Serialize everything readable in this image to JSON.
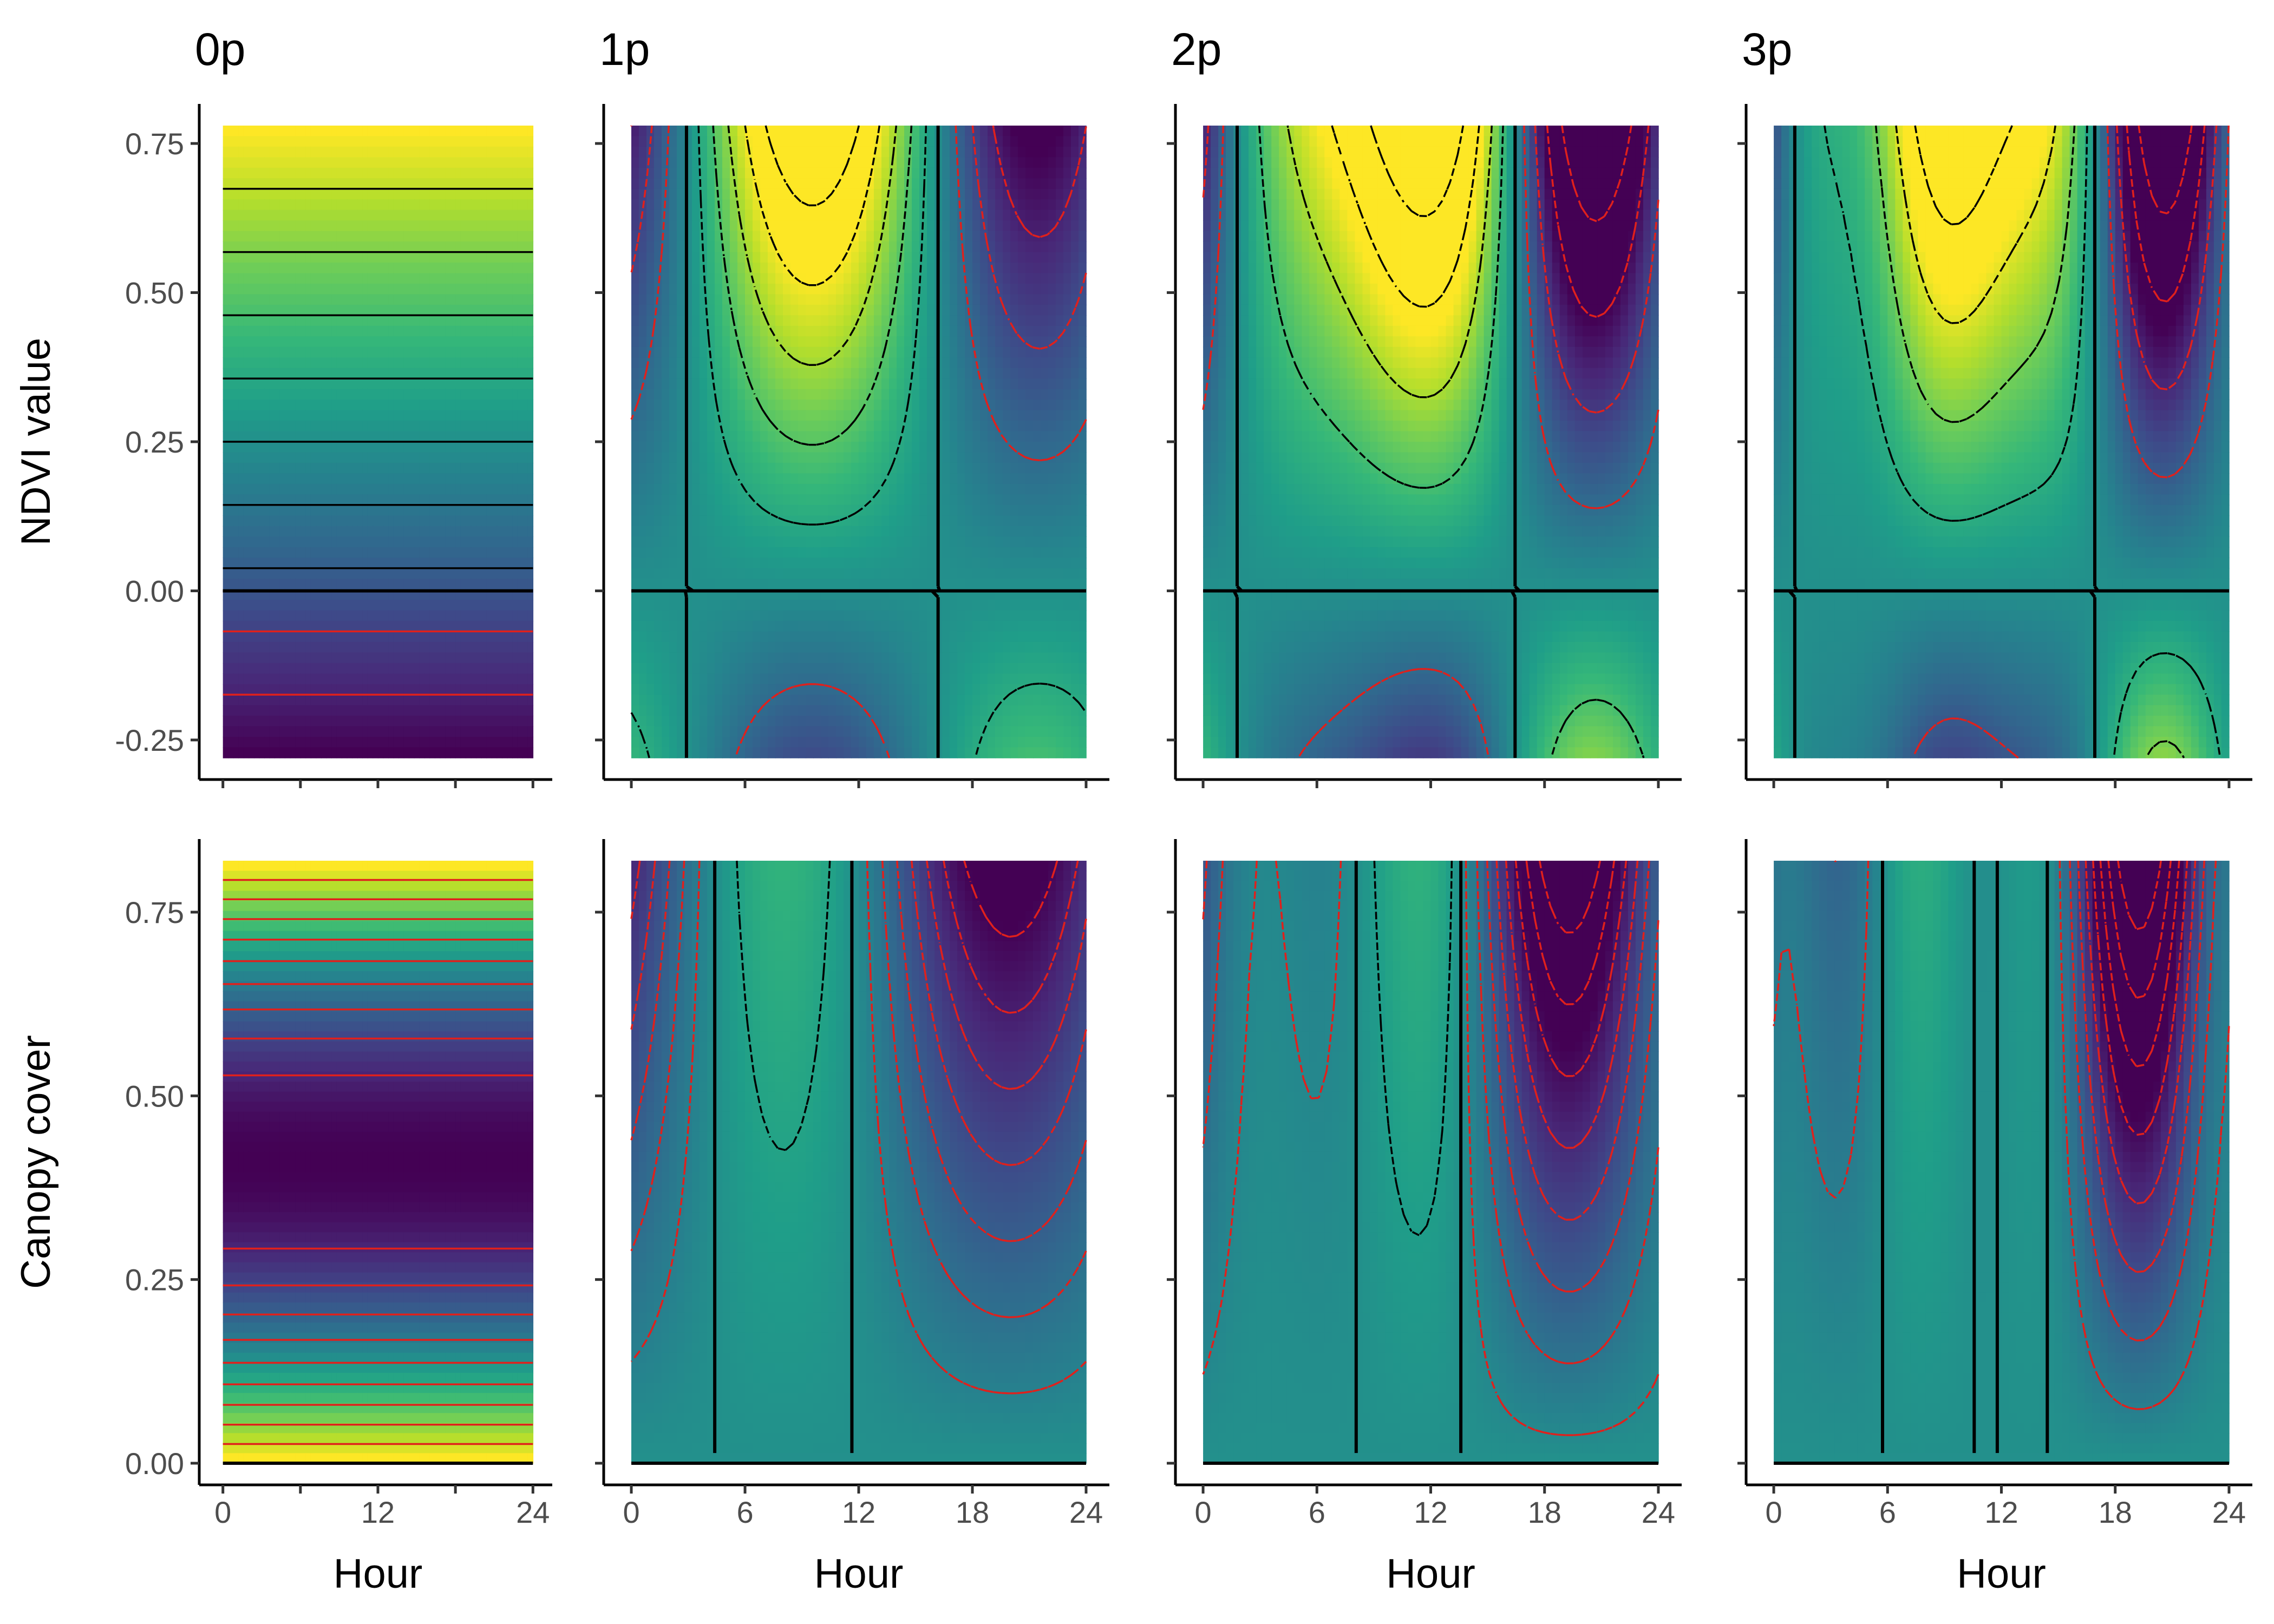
{
  "chart_data": {
    "type": "heatmap",
    "colormap": "viridis",
    "colors": {
      "viridis": [
        "#440154",
        "#482878",
        "#3e4a89",
        "#31688e",
        "#26828e",
        "#1f9e89",
        "#35b779",
        "#6dcd59",
        "#b4de2c",
        "#fde725"
      ],
      "zero_contour": "#000000",
      "negative_contour": "#e0201c",
      "positive_contour": "#000000",
      "axis": "#000000",
      "tick_label": "#4d4d4d"
    },
    "columns": [
      {
        "title": "0p",
        "harmonics": 0
      },
      {
        "title": "1p",
        "harmonics": 1
      },
      {
        "title": "2p",
        "harmonics": 2
      },
      {
        "title": "3p",
        "harmonics": 3
      }
    ],
    "rows": [
      {
        "id": "ndvi",
        "ylabel": "NDVI value",
        "ylim": [
          -0.28,
          0.78
        ],
        "yticks": [
          -0.25,
          0,
          0.25,
          0.5,
          0.75
        ],
        "ytick_labels": [
          "-0.25",
          "0.00",
          "0.25",
          "0.50",
          "0.75"
        ]
      },
      {
        "id": "canopy",
        "ylabel": "Canopy cover",
        "ylim": [
          0,
          0.82
        ],
        "yticks": [
          0,
          0.25,
          0.5,
          0.75
        ],
        "ytick_labels": [
          "0.00",
          "0.25",
          "0.50",
          "0.75"
        ]
      }
    ],
    "x": {
      "xlabel": "Hour",
      "xlim": [
        0,
        24
      ],
      "xticks_0p": [
        0,
        12,
        24
      ],
      "xticks_0p_labels": [
        "0",
        "12",
        "24"
      ],
      "xticks_harmonic": [
        0,
        6,
        12,
        18,
        24
      ],
      "xticks_harmonic_labels": [
        "0",
        "6",
        "12",
        "18",
        "24"
      ]
    },
    "legend": "none",
    "grid": false
  }
}
